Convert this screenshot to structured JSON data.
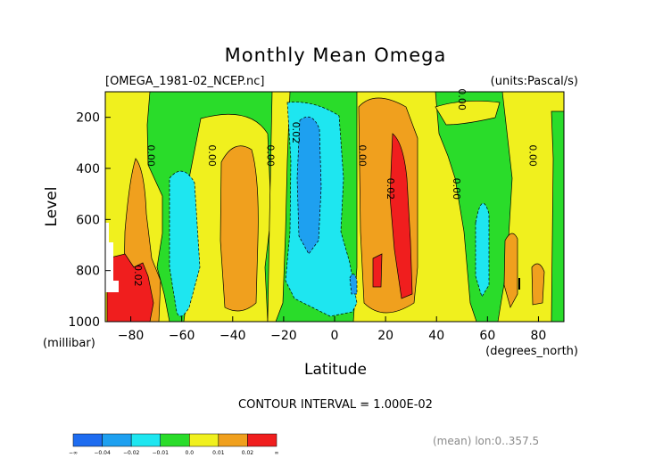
{
  "chart_data": {
    "type": "heatmap",
    "title": "Monthly Mean Omega",
    "file_label": "[OMEGA_1981-02_NCEP.nc]",
    "units_label": "(units:Pascal/s)",
    "xlabel": "Latitude",
    "x_units": "(degrees_north)",
    "ylabel": "Level",
    "y_units": "(millibar)",
    "xlim": [
      -90,
      90
    ],
    "ylim": [
      1000,
      100
    ],
    "x_ticks": [
      -80,
      -60,
      -40,
      -20,
      0,
      20,
      40,
      60,
      80
    ],
    "x_tick_labels": [
      "−80",
      "−60",
      "−40",
      "−20",
      "0",
      "20",
      "40",
      "60",
      "80"
    ],
    "y_ticks": [
      200,
      400,
      600,
      800,
      1000
    ],
    "contour_interval_text": "CONTOUR INTERVAL = 1.000E-02",
    "footer_text": "(mean) lon:0..357.5",
    "colorbar": {
      "bounds": [
        "−∞",
        "−0.04",
        "−0.02",
        "−0.01",
        "0.0",
        "0.01",
        "0.02",
        "∞"
      ],
      "colors": [
        "#1e6cf0",
        "#1ea0f0",
        "#1ee6f0",
        "#2adc2a",
        "#f0f01e",
        "#f0a01e",
        "#f01e1e"
      ]
    },
    "level_colors": {
      "lt_-0.02": "#1ea0f0",
      "-0.02_-0.01": "#1ee6f0",
      "-0.01_0.00": "#2adc2a",
      "0.00_0.01": "#f0f01e",
      "0.01_0.02": "#f0a01e",
      "gt_0.02": "#f01e1e",
      "missing": "#ffffff"
    },
    "contour_labels": [
      {
        "text": "0.00",
        "lat": -72,
        "lev": 350
      },
      {
        "text": "0.00",
        "lat": -48,
        "lev": 350
      },
      {
        "text": "0.00",
        "lat": -25,
        "lev": 350
      },
      {
        "text": "0.02",
        "lat": -15,
        "lev": 260
      },
      {
        "text": "0.00",
        "lat": 11,
        "lev": 350
      },
      {
        "text": "0.02",
        "lat": 22,
        "lev": 480
      },
      {
        "text": "0.00",
        "lat": 50,
        "lev": 130
      },
      {
        "text": "0.00",
        "lat": 48,
        "lev": 480
      },
      {
        "text": "0.00",
        "lat": 78,
        "lev": 350
      },
      {
        "text": "0.02",
        "lat": -77,
        "lev": 820
      }
    ]
  }
}
